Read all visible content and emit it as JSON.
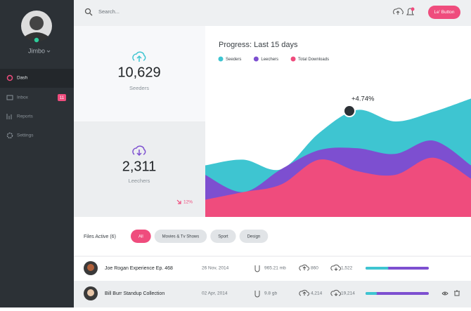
{
  "sidebar": {
    "user": "Jimbo",
    "menu": [
      {
        "label": "Dash"
      },
      {
        "label": "Inbox",
        "badge": "11"
      },
      {
        "label": "Reports"
      },
      {
        "label": "Settings"
      }
    ]
  },
  "topbar": {
    "search_placeholder": "Search...",
    "button": "Le' Button"
  },
  "stats": [
    {
      "value": "10,629",
      "label": "Seeders"
    },
    {
      "value": "2,311",
      "label": "Leechers",
      "change": "12%"
    }
  ],
  "chart_data": {
    "type": "area",
    "title": "Progress: Last 15 days",
    "annotation": "+4.74%",
    "ylim": [
      0,
      100
    ],
    "series": [
      {
        "name": "Seeders",
        "color": "#3ec5d1",
        "values": [
          27,
          30,
          25,
          44,
          56,
          50,
          55,
          62
        ]
      },
      {
        "name": "Leechers",
        "color": "#7d4fd0",
        "values": [
          22,
          13,
          25,
          35,
          36,
          33,
          40,
          27
        ]
      },
      {
        "name": "Total Downloads",
        "color": "#ef4c7d",
        "values": [
          9,
          13,
          17,
          30,
          24,
          22,
          31,
          20
        ]
      }
    ]
  },
  "files": {
    "title": "Files Active (6)",
    "filters": [
      "All",
      "Movies & Tv Shows",
      "Sport",
      "Design"
    ],
    "rows": [
      {
        "name": "Joe Rogan Experience Ep. 468",
        "date": "26 Nov, 2014",
        "size": "965.21 mb",
        "seeders": "860",
        "leechers": "1,522"
      },
      {
        "name": "Bill Burr Standup Collection",
        "date": "02 Apr, 2014",
        "size": "9.8 gb",
        "seeders": "4,214",
        "leechers": "19,214"
      }
    ]
  }
}
